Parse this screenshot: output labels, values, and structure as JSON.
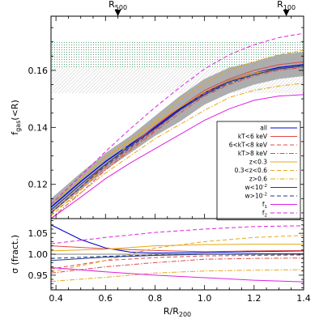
{
  "chart_data": {
    "type": "line",
    "xlabel": "R/R",
    "xlabel_sub": "200",
    "xlim": [
      0.38,
      1.4
    ],
    "x_ticks": [
      0.4,
      0.6,
      0.8,
      1.0,
      1.2,
      1.4
    ],
    "x_tick_labels": [
      "0.4",
      "0.6",
      "0.8",
      "1.0",
      "1.2",
      "1.4"
    ],
    "top_markers": [
      {
        "label": "R",
        "sub": "500",
        "x": 0.65
      },
      {
        "label": "R",
        "sub": "100",
        "x": 1.33
      }
    ],
    "upper_panel": {
      "ylabel": "f",
      "ylabel_sub": "gas",
      "ylabel_tail": "(<R)",
      "ylim": [
        0.108,
        0.179
      ],
      "y_ticks": [
        0.12,
        0.14,
        0.16
      ],
      "y_tick_labels": [
        "0.12",
        "0.14",
        "0.16"
      ],
      "bands": [
        {
          "name": "dotted-band-top",
          "ymin": 0.161,
          "ymax": 0.1705,
          "style": "dotted",
          "color": "#2e8b57"
        },
        {
          "name": "hatched-band-bottom",
          "ymin": 0.152,
          "ymax": 0.161,
          "style": "hatched",
          "color": "#b0b0b0"
        }
      ],
      "scatter_band": {
        "x": [
          0.38,
          0.5,
          0.6,
          0.7,
          0.8,
          0.9,
          1.0,
          1.1,
          1.2,
          1.3,
          1.4
        ],
        "lower": [
          0.11,
          0.118,
          0.125,
          0.131,
          0.137,
          0.142,
          0.148,
          0.152,
          0.155,
          0.157,
          0.158
        ],
        "upper": [
          0.115,
          0.124,
          0.131,
          0.137,
          0.144,
          0.151,
          0.157,
          0.161,
          0.163,
          0.1655,
          0.1665
        ],
        "color": "#a9a9a9"
      },
      "series": [
        {
          "name": "all",
          "style": "solid",
          "color": "#0000cc",
          "width": 1.3,
          "x": [
            0.38,
            0.5,
            0.6,
            0.7,
            0.8,
            0.9,
            1.0,
            1.1,
            1.2,
            1.3,
            1.4
          ],
          "y": [
            0.112,
            0.121,
            0.128,
            0.134,
            0.14,
            0.1465,
            0.152,
            0.1565,
            0.159,
            0.161,
            0.162
          ]
        },
        {
          "name": "kT<6 keV",
          "style": "solid",
          "color": "#e04a4a",
          "x": [
            0.38,
            0.5,
            0.6,
            0.7,
            0.8,
            0.9,
            1.0,
            1.1,
            1.2,
            1.3,
            1.4
          ],
          "y": [
            0.11,
            0.119,
            0.127,
            0.1335,
            0.1405,
            0.147,
            0.153,
            0.157,
            0.16,
            0.162,
            0.163
          ]
        },
        {
          "name": "6<kT<8 keV",
          "style": "dashed",
          "color": "#e04a4a",
          "x": [
            0.38,
            0.5,
            0.6,
            0.7,
            0.8,
            0.9,
            1.0,
            1.1,
            1.2,
            1.3,
            1.4
          ],
          "y": [
            0.109,
            0.118,
            0.126,
            0.1325,
            0.139,
            0.146,
            0.152,
            0.156,
            0.159,
            0.1605,
            0.1615
          ]
        },
        {
          "name": "kT>8 keV",
          "style": "dash-dot",
          "color": "#e04a4a",
          "x": [
            0.38,
            0.5,
            0.6,
            0.7,
            0.8,
            0.9,
            1.0,
            1.1,
            1.2,
            1.3,
            1.4
          ],
          "y": [
            0.108,
            0.117,
            0.125,
            0.132,
            0.1385,
            0.145,
            0.151,
            0.155,
            0.158,
            0.16,
            0.161
          ]
        },
        {
          "name": "z<0.3",
          "style": "solid",
          "color": "#e6a817",
          "x": [
            0.38,
            0.5,
            0.6,
            0.7,
            0.8,
            0.9,
            1.0,
            1.1,
            1.2,
            1.3,
            1.4
          ],
          "y": [
            0.113,
            0.122,
            0.1295,
            0.1355,
            0.1415,
            0.147,
            0.1525,
            0.1565,
            0.159,
            0.1605,
            0.1615
          ]
        },
        {
          "name": "0.3<z<0.6",
          "style": "dashed",
          "color": "#e6a817",
          "x": [
            0.38,
            0.5,
            0.6,
            0.7,
            0.8,
            0.9,
            1.0,
            1.1,
            1.2,
            1.3,
            1.4
          ],
          "y": [
            0.109,
            0.118,
            0.1265,
            0.1345,
            0.142,
            0.1495,
            0.1555,
            0.16,
            0.163,
            0.1655,
            0.167
          ]
        },
        {
          "name": "z>0.6",
          "style": "dash-dot",
          "color": "#e6a817",
          "x": [
            0.38,
            0.5,
            0.6,
            0.7,
            0.8,
            0.9,
            1.0,
            1.1,
            1.2,
            1.3,
            1.4
          ],
          "y": [
            0.11,
            0.117,
            0.124,
            0.13,
            0.136,
            0.141,
            0.146,
            0.1505,
            0.153,
            0.1545,
            0.1555
          ]
        },
        {
          "name": "w<10",
          "sup": "-2",
          "style": "solid",
          "color": "#1e3a8a",
          "x": [
            0.38,
            0.5,
            0.6,
            0.7,
            0.8,
            0.9,
            1.0,
            1.1,
            1.2,
            1.3,
            1.4
          ],
          "y": [
            0.111,
            0.12,
            0.127,
            0.1335,
            0.1395,
            0.146,
            0.1515,
            0.156,
            0.1585,
            0.1605,
            0.1615
          ]
        },
        {
          "name": "w>10",
          "sup": "-2",
          "style": "dashed",
          "color": "#1e3a8a",
          "x": [
            0.38,
            0.5,
            0.6,
            0.7,
            0.8,
            0.9,
            1.0,
            1.1,
            1.2,
            1.3,
            1.4
          ],
          "y": [
            0.11,
            0.119,
            0.1265,
            0.133,
            0.1395,
            0.146,
            0.1515,
            0.1555,
            0.1585,
            0.1605,
            0.1615
          ]
        },
        {
          "name": "f",
          "sub": "1",
          "style": "solid",
          "color": "#e020e0",
          "x": [
            0.38,
            0.5,
            0.6,
            0.7,
            0.8,
            0.9,
            1.0,
            1.1,
            1.2,
            1.3,
            1.4
          ],
          "y": [
            0.108,
            0.1155,
            0.122,
            0.1275,
            0.1325,
            0.1375,
            0.1425,
            0.1465,
            0.1495,
            0.151,
            0.1515
          ]
        },
        {
          "name": "f",
          "sub": "2",
          "style": "dashed",
          "color": "#e020e0",
          "x": [
            0.38,
            0.5,
            0.6,
            0.7,
            0.8,
            0.9,
            1.0,
            1.1,
            1.2,
            1.3,
            1.4
          ],
          "y": [
            0.113,
            0.123,
            0.1315,
            0.1395,
            0.147,
            0.154,
            0.1605,
            0.1655,
            0.169,
            0.1715,
            0.173
          ]
        }
      ]
    },
    "lower_panel": {
      "ylabel": "σ (fract.)",
      "ylim": [
        0.915,
        1.085
      ],
      "y_ticks": [
        0.95,
        1.0,
        1.05
      ],
      "y_tick_labels": [
        "0.95",
        "1.00",
        "1.05"
      ],
      "series": [
        {
          "name": "all",
          "style": "solid",
          "color": "#0000cc",
          "x": [
            0.38,
            0.5,
            0.6,
            0.7,
            0.8,
            1.0,
            1.2,
            1.4
          ],
          "y": [
            1.07,
            1.035,
            1.015,
            1.005,
            1.003,
            1.004,
            1.006,
            1.008
          ]
        },
        {
          "name": "kT<6 keV",
          "style": "solid",
          "color": "#e04a4a",
          "x": [
            0.38,
            0.6,
            0.8,
            1.0,
            1.2,
            1.4
          ],
          "y": [
            1.02,
            1.013,
            1.009,
            1.006,
            1.008,
            1.009
          ]
        },
        {
          "name": "6<kT<8 keV",
          "style": "dashed",
          "color": "#e04a4a",
          "x": [
            0.38,
            0.6,
            0.8,
            1.0,
            1.2,
            1.4
          ],
          "y": [
            0.965,
            0.985,
            0.992,
            0.996,
            0.997,
            0.998
          ]
        },
        {
          "name": "kT>8 keV",
          "style": "dash-dot",
          "color": "#e04a4a",
          "x": [
            0.38,
            0.6,
            0.8,
            1.0,
            1.2,
            1.4
          ],
          "y": [
            0.955,
            0.97,
            0.98,
            0.988,
            0.99,
            0.991
          ]
        },
        {
          "name": "z<0.3",
          "style": "solid",
          "color": "#e6a817",
          "x": [
            0.38,
            0.6,
            0.8,
            1.0,
            1.2,
            1.4
          ],
          "y": [
            1.008,
            1.012,
            1.02,
            1.023,
            1.024,
            1.024
          ]
        },
        {
          "name": "0.3<z<0.6",
          "style": "dashed",
          "color": "#e6a817",
          "x": [
            0.38,
            0.6,
            0.8,
            1.0,
            1.2,
            1.4
          ],
          "y": [
            0.958,
            0.985,
            1.015,
            1.03,
            1.04,
            1.045
          ]
        },
        {
          "name": "z>0.6",
          "style": "dash-dot",
          "color": "#e6a817",
          "x": [
            0.38,
            0.6,
            0.8,
            1.0,
            1.2,
            1.4
          ],
          "y": [
            0.935,
            0.945,
            0.955,
            0.96,
            0.962,
            0.963
          ]
        },
        {
          "name": "w<10",
          "sup": "-2",
          "style": "solid",
          "color": "#1e3a8a",
          "x": [
            0.38,
            0.6,
            0.8,
            1.0,
            1.2,
            1.4
          ],
          "y": [
            0.985,
            0.993,
            0.997,
            1.0,
            1.001,
            1.001
          ]
        },
        {
          "name": "w>10",
          "sup": "-2",
          "style": "dashed",
          "color": "#1e3a8a",
          "x": [
            0.38,
            0.6,
            0.8,
            1.0,
            1.2,
            1.4
          ],
          "y": [
            0.99,
            0.995,
            0.998,
            1.0,
            1.0,
            1.0
          ]
        },
        {
          "name": "f",
          "sub": "1",
          "style": "solid",
          "color": "#e020e0",
          "x": [
            0.38,
            0.6,
            0.8,
            1.0,
            1.2,
            1.4
          ],
          "y": [
            0.968,
            0.958,
            0.95,
            0.944,
            0.938,
            0.934
          ]
        },
        {
          "name": "f",
          "sub": "2",
          "style": "dashed",
          "color": "#e020e0",
          "x": [
            0.38,
            0.6,
            0.8,
            1.0,
            1.2,
            1.4
          ],
          "y": [
            1.025,
            1.04,
            1.052,
            1.06,
            1.066,
            1.068
          ]
        }
      ]
    },
    "legend": {
      "placement": "lower-right",
      "entries": [
        {
          "text": "all"
        },
        {
          "text": "kT<6  keV"
        },
        {
          "text": "6<kT<8  keV"
        },
        {
          "text": "kT>8  keV"
        },
        {
          "text": "z<0.3"
        },
        {
          "text": "0.3<z<0.6"
        },
        {
          "text": "z>0.6"
        },
        {
          "text": "w<10",
          "sup": "-2"
        },
        {
          "text": "w>10",
          "sup": "-2"
        },
        {
          "text": "f",
          "sub": "1"
        },
        {
          "text": "f",
          "sub": "2"
        }
      ]
    }
  }
}
